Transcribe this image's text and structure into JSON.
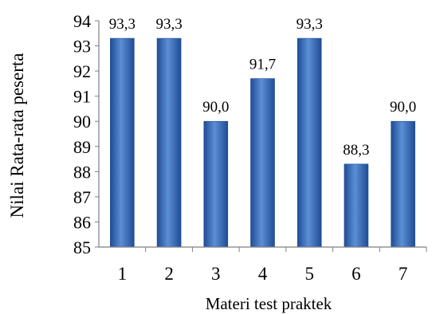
{
  "chart_data": {
    "type": "bar",
    "categories": [
      "1",
      "2",
      "3",
      "4",
      "5",
      "6",
      "7"
    ],
    "values": [
      93.3,
      93.3,
      90.0,
      91.7,
      93.3,
      88.3,
      90.0
    ],
    "data_labels": [
      "93,3",
      "93,3",
      "90,0",
      "91,7",
      "93,3",
      "88,3",
      "90,0"
    ],
    "title": "",
    "xlabel": "Materi test  praktek",
    "ylabel": "Nilai Rata-rata peserta",
    "ylim": [
      85,
      94
    ],
    "yticks": [
      85,
      86,
      87,
      88,
      89,
      90,
      91,
      92,
      93,
      94
    ],
    "grid": false,
    "legend": "none",
    "colors": {
      "bar_light": "#5b8fd6",
      "bar_mid": "#3a6fc0",
      "bar_dark": "#1f4c95",
      "axis": "#7f7f7f"
    }
  }
}
